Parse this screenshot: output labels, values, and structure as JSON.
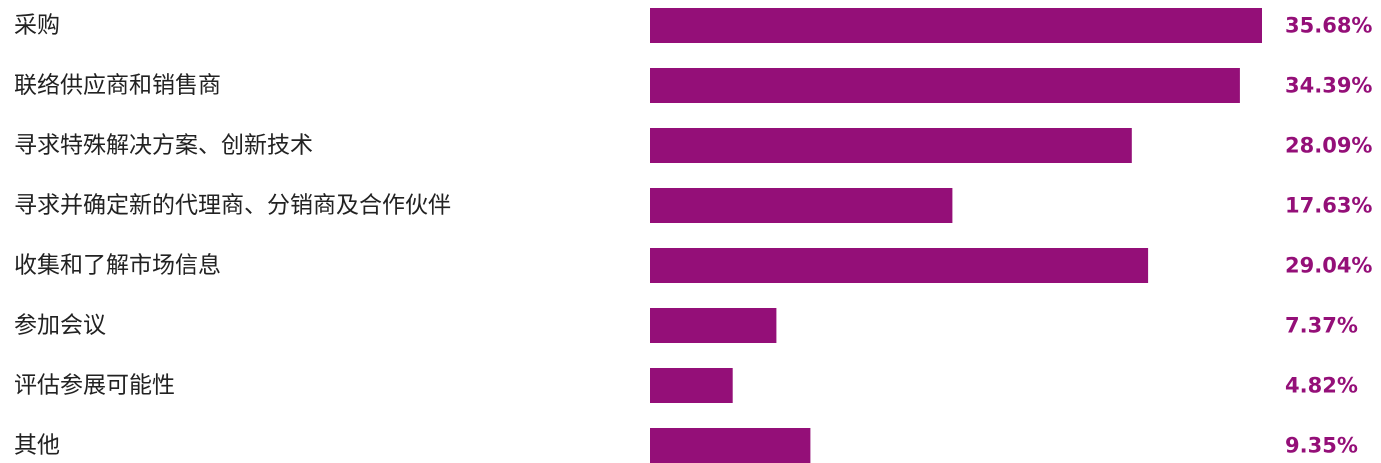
{
  "chart_data": {
    "type": "bar",
    "orientation": "horizontal",
    "categories": [
      "采购",
      "联络供应商和销售商",
      "寻求特殊解决方案、创新技术",
      "寻求并确定新的代理商、分销商及合作伙伴",
      "收集和了解市场信息",
      "参加会议",
      "评估参展可能性",
      "其他"
    ],
    "values": [
      35.68,
      34.39,
      28.09,
      17.63,
      29.04,
      7.37,
      4.82,
      9.35
    ],
    "value_labels": [
      "35.68%",
      "34.39%",
      "28.09%",
      "17.63%",
      "29.04%",
      "7.37%",
      "4.82%",
      "9.35%"
    ],
    "unit": "%",
    "grid": false,
    "legend": "none",
    "colors": {
      "bar": "#940f78",
      "value_text": "#940f78",
      "label_text": "#222222"
    }
  }
}
